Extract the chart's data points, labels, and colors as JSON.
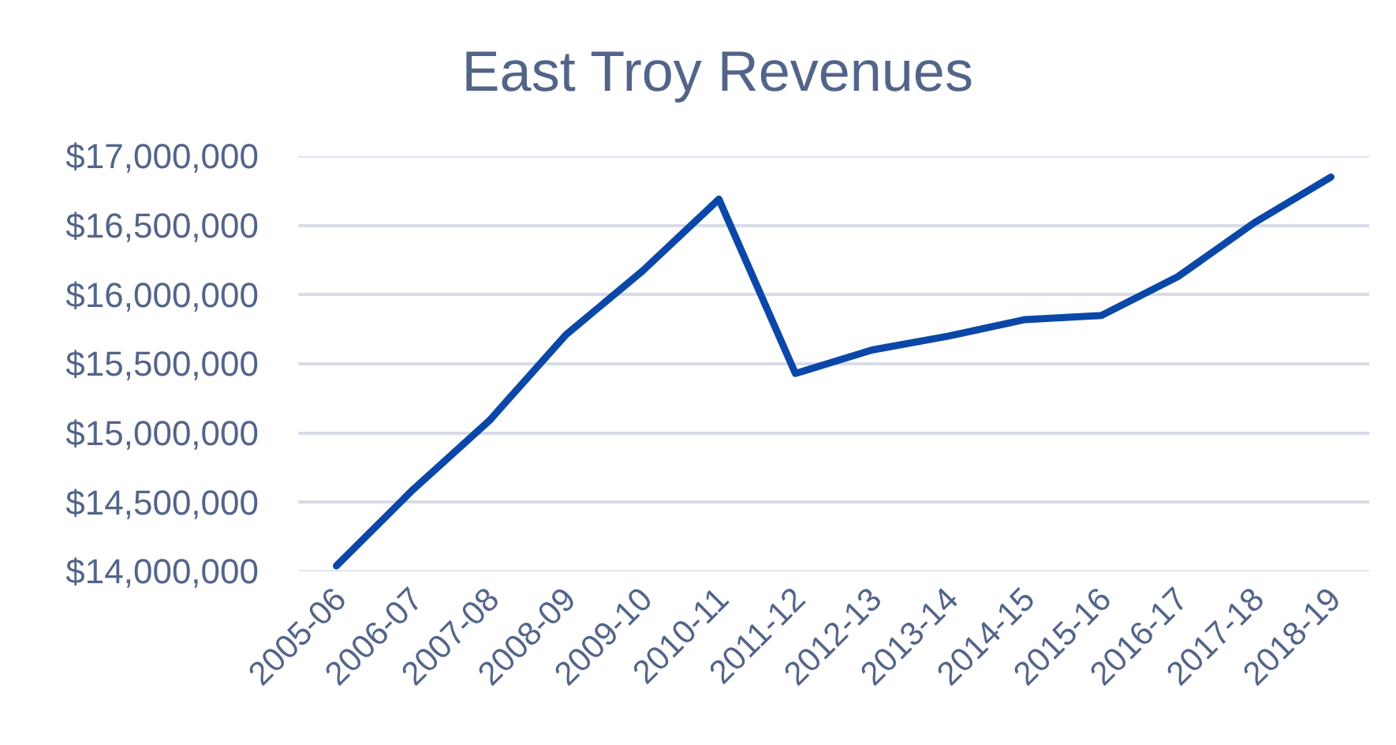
{
  "chart_data": {
    "type": "line",
    "title": "East Troy Revenues",
    "categories": [
      "2005-06",
      "2006-07",
      "2007-08",
      "2008-09",
      "2009-10",
      "2010-11",
      "2011-12",
      "2012-13",
      "2013-14",
      "2014-15",
      "2015-16",
      "2016-17",
      "2017-18",
      "2018-19"
    ],
    "series": [
      {
        "color": "#0a47a8",
        "values": [
          14040000,
          14590000,
          15090000,
          15710000,
          16170000,
          16690000,
          15430000,
          15600000,
          15700000,
          15820000,
          15850000,
          16130000,
          16520000,
          16850000
        ]
      }
    ],
    "ylim": [
      14000000,
      17000000
    ],
    "yticks": [
      {
        "value": 14000000,
        "label": "$14,000,000"
      },
      {
        "value": 14500000,
        "label": "$14,500,000"
      },
      {
        "value": 15000000,
        "label": "$15,000,000"
      },
      {
        "value": 15500000,
        "label": "$15,500,000"
      },
      {
        "value": 16000000,
        "label": "$16,000,000"
      },
      {
        "value": 16500000,
        "label": "$16,500,000"
      },
      {
        "value": 17000000,
        "label": "$17,000,000"
      }
    ],
    "grid": "y"
  }
}
